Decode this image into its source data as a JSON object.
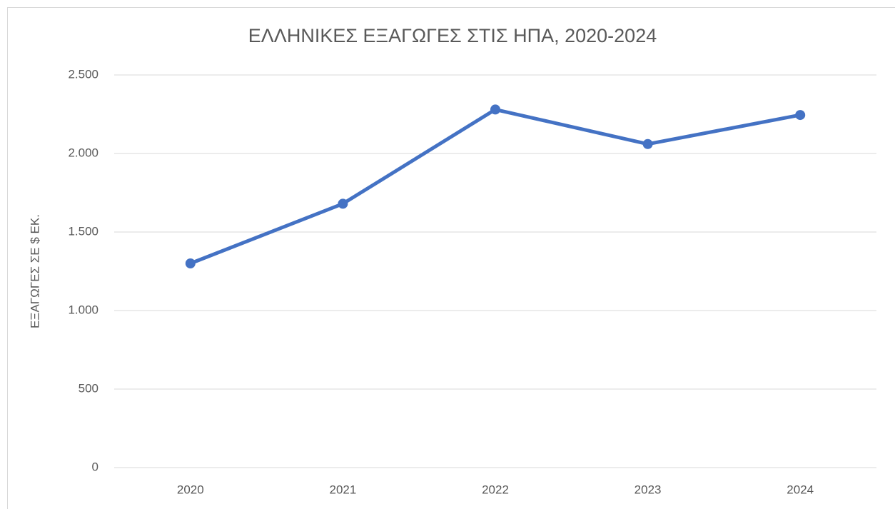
{
  "chart_data": {
    "type": "line",
    "title": "ΕΛΛΗΝΙΚΕΣ ΕΞΑΓΩΓΕΣ ΣΤΙΣ ΗΠΑ, 2020-2024",
    "y_label": "ΕΞΑΓΩΓΕΣ ΣΕ $ ΕΚ.",
    "categories": [
      "2020",
      "2021",
      "2022",
      "2023",
      "2024"
    ],
    "series": [
      {
        "name": "ΕΞΑΓΩΓΕΣ",
        "color": "#4472c4",
        "values": [
          1300,
          1680,
          2280,
          2060,
          2245
        ]
      }
    ],
    "ylim": [
      0,
      2500
    ],
    "yticks": [
      0,
      500,
      {
        "value": 1000,
        "label": "1.000"
      },
      {
        "value": 1500,
        "label": "1.500"
      },
      {
        "value": 2000,
        "label": "2.000"
      },
      {
        "value": 2500,
        "label": "2.500"
      }
    ],
    "grid": true
  }
}
